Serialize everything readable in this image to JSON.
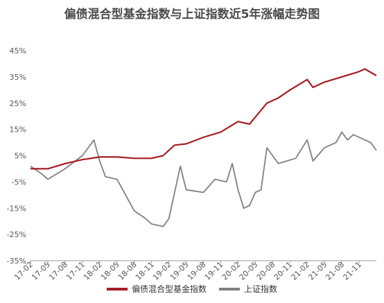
{
  "chart_data": {
    "type": "line",
    "title": "偏债混合型基金指数与上证指数近5年涨幅走势图",
    "yticks": [
      "45%",
      "35%",
      "25%",
      "15%",
      "5%",
      "-5%",
      "-15%",
      "-25%",
      "-35%"
    ],
    "ylim": [
      -35,
      45
    ],
    "xticks": [
      "17-02",
      "17-05",
      "17-08",
      "17-11",
      "18-02",
      "18-05",
      "18-08",
      "18-11",
      "19-02",
      "19-05",
      "19-08",
      "19-11",
      "20-02",
      "20-05",
      "20-08",
      "20-11",
      "21-02",
      "21-05",
      "21-08",
      "21-11"
    ],
    "grid": "none",
    "legend_position": "bottom",
    "colors": {
      "bond_mixed": "#a51d22",
      "shanghai": "#808080"
    },
    "series": [
      {
        "name": "偏债混合型基金指数",
        "x": [
          "17-02",
          "17-05",
          "17-08",
          "17-11",
          "18-02",
          "18-05",
          "18-08",
          "18-11",
          "19-01",
          "19-03",
          "19-05",
          "19-08",
          "19-11",
          "20-02",
          "20-04",
          "20-07",
          "20-09",
          "20-11",
          "21-02",
          "21-03",
          "21-05",
          "21-08",
          "21-11",
          "21-12",
          "22-02"
        ],
        "values": [
          0,
          0,
          2,
          3.5,
          4.5,
          4.5,
          4,
          4,
          5,
          9,
          9.5,
          12,
          14,
          18,
          17,
          25,
          27,
          30,
          34,
          31,
          33,
          35,
          37,
          38,
          35.5
        ]
      },
      {
        "name": "上证指数",
        "x": [
          "17-02",
          "17-04",
          "17-05",
          "17-08",
          "17-11",
          "18-01",
          "18-02",
          "18-03",
          "18-05",
          "18-07",
          "18-08",
          "18-10",
          "18-11",
          "19-01",
          "19-02",
          "19-04",
          "19-05",
          "19-08",
          "19-10",
          "19-12",
          "20-01",
          "20-02",
          "20-03",
          "20-04",
          "20-05",
          "20-06",
          "20-07",
          "20-09",
          "20-12",
          "21-02",
          "21-03",
          "21-05",
          "21-07",
          "21-08",
          "21-09",
          "21-10",
          "21-12",
          "22-01",
          "22-02"
        ],
        "values": [
          1,
          -2,
          -4,
          0,
          5,
          11,
          3,
          -3,
          -4,
          -12,
          -16,
          -19,
          -21,
          -22,
          -19,
          1,
          -8,
          -9,
          -4,
          -5,
          2,
          -8,
          -15,
          -14,
          -9,
          -8,
          8,
          2,
          4,
          11,
          3,
          8,
          10,
          14,
          11,
          13,
          11,
          10,
          7
        ]
      }
    ]
  }
}
